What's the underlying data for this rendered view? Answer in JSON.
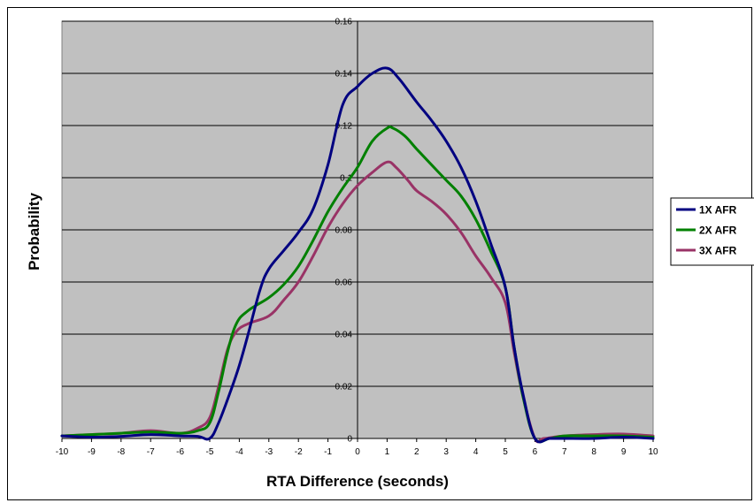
{
  "chart_data": {
    "type": "line",
    "title": "",
    "xlabel": "RTA Difference (seconds)",
    "ylabel": "Probability",
    "xlim": [
      -10,
      10
    ],
    "ylim": [
      0,
      0.16
    ],
    "x_ticks": [
      "-10",
      "-9",
      "-8",
      "-7",
      "-6",
      "-5",
      "-4",
      "-3",
      "-2",
      "-1",
      "0",
      "1",
      "2",
      "3",
      "4",
      "5",
      "6",
      "7",
      "8",
      "9",
      "10"
    ],
    "y_ticks": [
      "0",
      "0.02",
      "0.04",
      "0.06",
      "0.08",
      "0.1",
      "0.12",
      "0.14",
      "0.16"
    ],
    "grid": "horizontal",
    "plot_background": "#c0c0c0",
    "legend_position": "right",
    "series": [
      {
        "name": "1X AFR",
        "color": "#000080",
        "points": [
          [
            -10,
            0.001
          ],
          [
            -9,
            0.0005
          ],
          [
            -8,
            0.0008
          ],
          [
            -7,
            0.0015
          ],
          [
            -6,
            0.001
          ],
          [
            -5.4,
            0.0008
          ],
          [
            -5,
            0.0
          ],
          [
            -4.7,
            0.006
          ],
          [
            -4.3,
            0.018
          ],
          [
            -4,
            0.028
          ],
          [
            -3.7,
            0.04
          ],
          [
            -3.3,
            0.057
          ],
          [
            -3,
            0.065
          ],
          [
            -2.5,
            0.072
          ],
          [
            -2,
            0.079
          ],
          [
            -1.5,
            0.088
          ],
          [
            -1,
            0.105
          ],
          [
            -0.5,
            0.128
          ],
          [
            0,
            0.135
          ],
          [
            0.5,
            0.14
          ],
          [
            1,
            0.142
          ],
          [
            1.4,
            0.138
          ],
          [
            2,
            0.129
          ],
          [
            2.5,
            0.122
          ],
          [
            3,
            0.114
          ],
          [
            3.5,
            0.104
          ],
          [
            4,
            0.091
          ],
          [
            4.5,
            0.075
          ],
          [
            5,
            0.058
          ],
          [
            5.3,
            0.035
          ],
          [
            5.6,
            0.017
          ],
          [
            6,
            0.0
          ],
          [
            6.5,
            0.0
          ],
          [
            7,
            0.0
          ],
          [
            8,
            0.0
          ],
          [
            9,
            0.0005
          ],
          [
            10,
            0.0
          ]
        ]
      },
      {
        "name": "2X AFR",
        "color": "#008000",
        "points": [
          [
            -10,
            0.001
          ],
          [
            -9,
            0.0015
          ],
          [
            -8,
            0.002
          ],
          [
            -7,
            0.0025
          ],
          [
            -6,
            0.002
          ],
          [
            -5.4,
            0.003
          ],
          [
            -5,
            0.006
          ],
          [
            -4.7,
            0.018
          ],
          [
            -4.4,
            0.033
          ],
          [
            -4.1,
            0.044
          ],
          [
            -3.7,
            0.049
          ],
          [
            -3,
            0.054
          ],
          [
            -2.5,
            0.059
          ],
          [
            -2,
            0.066
          ],
          [
            -1.5,
            0.076
          ],
          [
            -1,
            0.087
          ],
          [
            -0.5,
            0.096
          ],
          [
            0,
            0.104
          ],
          [
            0.5,
            0.114
          ],
          [
            1,
            0.119
          ],
          [
            1.2,
            0.119
          ],
          [
            1.6,
            0.116
          ],
          [
            2,
            0.111
          ],
          [
            2.5,
            0.105
          ],
          [
            3,
            0.099
          ],
          [
            3.5,
            0.093
          ],
          [
            4,
            0.084
          ],
          [
            4.5,
            0.072
          ],
          [
            5,
            0.058
          ],
          [
            5.3,
            0.035
          ],
          [
            5.6,
            0.016
          ],
          [
            6,
            0.0
          ],
          [
            6.5,
            0.0
          ],
          [
            7,
            0.001
          ],
          [
            8,
            0.001
          ],
          [
            9,
            0.001
          ],
          [
            10,
            0.0005
          ]
        ]
      },
      {
        "name": "3X AFR",
        "color": "#993366",
        "points": [
          [
            -10,
            0.001
          ],
          [
            -9,
            0.0015
          ],
          [
            -8,
            0.002
          ],
          [
            -7,
            0.003
          ],
          [
            -6,
            0.002
          ],
          [
            -5.4,
            0.004
          ],
          [
            -5,
            0.008
          ],
          [
            -4.7,
            0.02
          ],
          [
            -4.4,
            0.034
          ],
          [
            -4.1,
            0.041
          ],
          [
            -3.7,
            0.044
          ],
          [
            -3,
            0.047
          ],
          [
            -2.5,
            0.053
          ],
          [
            -2,
            0.06
          ],
          [
            -1.5,
            0.07
          ],
          [
            -1,
            0.081
          ],
          [
            -0.5,
            0.09
          ],
          [
            0,
            0.097
          ],
          [
            0.5,
            0.102
          ],
          [
            1,
            0.106
          ],
          [
            1.3,
            0.104
          ],
          [
            1.7,
            0.099
          ],
          [
            2,
            0.095
          ],
          [
            2.5,
            0.091
          ],
          [
            3,
            0.086
          ],
          [
            3.5,
            0.079
          ],
          [
            4,
            0.07
          ],
          [
            4.5,
            0.062
          ],
          [
            5,
            0.052
          ],
          [
            5.3,
            0.033
          ],
          [
            5.6,
            0.016
          ],
          [
            6,
            0.0
          ],
          [
            6.3,
            0.0
          ],
          [
            7,
            0.001
          ],
          [
            8,
            0.0015
          ],
          [
            9,
            0.0017
          ],
          [
            10,
            0.001
          ]
        ]
      }
    ]
  }
}
